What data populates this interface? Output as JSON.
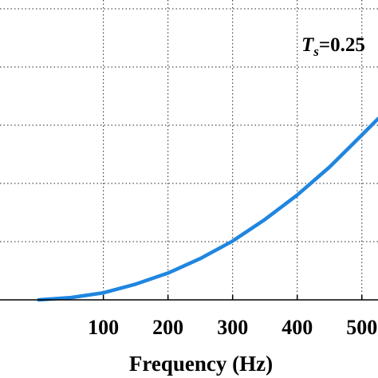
{
  "chart_data": {
    "type": "line",
    "xlabel": "Frequency (Hz)",
    "ylabel": "",
    "xlim": [
      -60,
      525
    ],
    "ylim": [
      0,
      5.15
    ],
    "x_ticks": [
      100,
      200,
      300,
      400,
      500
    ],
    "x_tick_labels": [
      "100",
      "200",
      "300",
      "400",
      "500"
    ],
    "y_gridlines": [
      1,
      2,
      3,
      4,
      5
    ],
    "grid": true,
    "grid_style": "dotted",
    "series": [
      {
        "color": "#1f86e0",
        "x": [
          0,
          50,
          100,
          150,
          200,
          250,
          300,
          350,
          400,
          450,
          500,
          525
        ],
        "y": [
          0,
          0.04,
          0.12,
          0.27,
          0.46,
          0.71,
          1.01,
          1.38,
          1.8,
          2.28,
          2.83,
          3.11
        ]
      }
    ],
    "annotation": {
      "italic_part": "T",
      "subscript": "s",
      "text_after": "=0.25"
    }
  }
}
